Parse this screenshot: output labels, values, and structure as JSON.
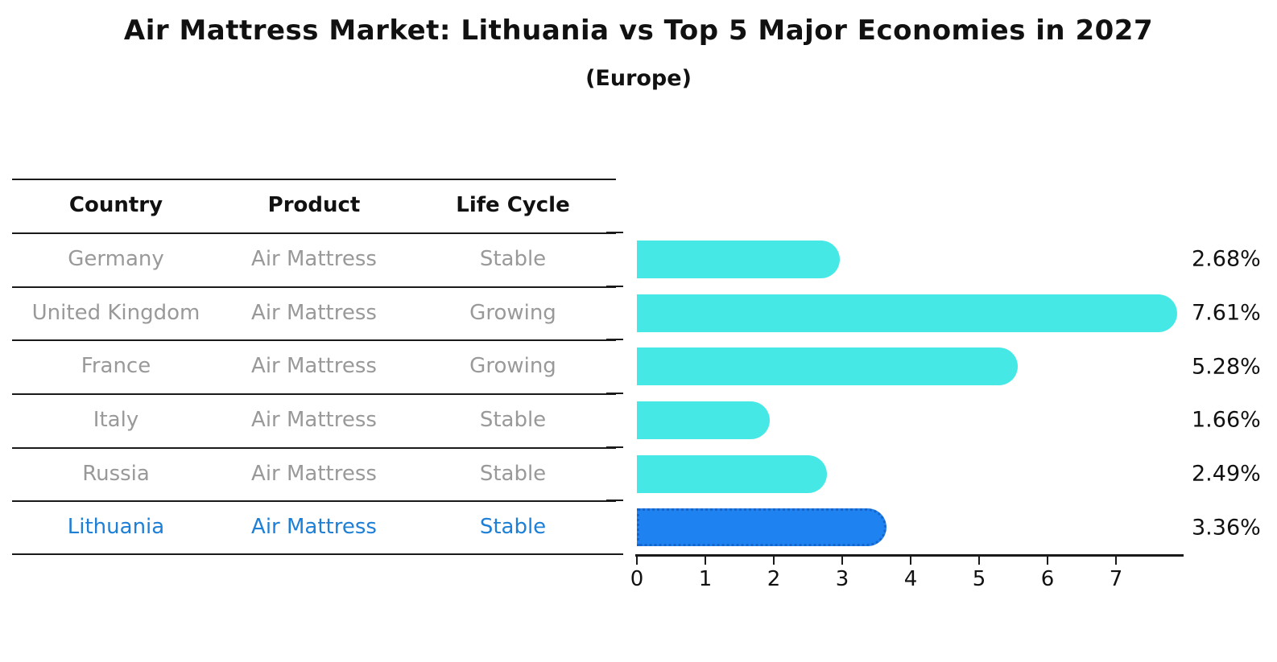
{
  "title": "Air Mattress Market: Lithuania vs Top 5 Major Economies in 2027",
  "subtitle": "(Europe)",
  "table": {
    "headers": [
      "Country",
      "Product",
      "Life Cycle"
    ],
    "rows": [
      {
        "country": "Germany",
        "product": "Air Mattress",
        "life_cycle": "Stable",
        "highlight": false
      },
      {
        "country": "United Kingdom",
        "product": "Air Mattress",
        "life_cycle": "Growing",
        "highlight": false
      },
      {
        "country": "France",
        "product": "Air Mattress",
        "life_cycle": "Growing",
        "highlight": false
      },
      {
        "country": "Italy",
        "product": "Air Mattress",
        "life_cycle": "Stable",
        "highlight": false
      },
      {
        "country": "Russia",
        "product": "Air Mattress",
        "life_cycle": "Stable",
        "highlight": true
      }
    ]
  },
  "chart_data": {
    "type": "bar",
    "orientation": "horizontal",
    "title": "Air Mattress Market: Lithuania vs Top 5 Major Economies in 2027",
    "subtitle": "(Europe)",
    "categories": [
      "Germany",
      "United Kingdom",
      "France",
      "Italy",
      "Russia",
      "Lithuania"
    ],
    "values": [
      2.68,
      7.61,
      5.28,
      1.66,
      2.49,
      3.36
    ],
    "value_labels": [
      "2.68%",
      "7.61%",
      "5.28%",
      "1.66%",
      "2.49%",
      "3.36%"
    ],
    "x_ticks": [
      0,
      1,
      2,
      3,
      4,
      5,
      6,
      7
    ],
    "xlim": [
      0,
      8
    ],
    "grid": false,
    "legend": "none",
    "highlight_index": 5,
    "bar_color": "#46e8e6",
    "highlight_color": "#1e82f0",
    "highlight_border_color": "#1565cb",
    "row_text_color": "#999999",
    "highlight_text_color": "#1e7fd6",
    "axis_color": "#1a1a1a"
  }
}
